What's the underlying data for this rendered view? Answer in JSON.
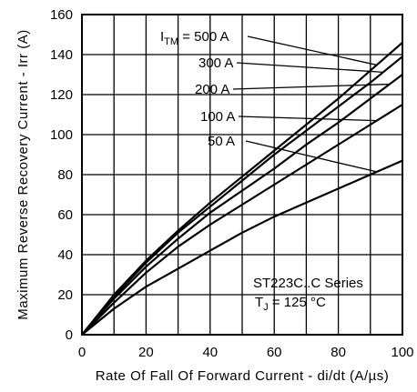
{
  "chart_data": {
    "type": "line",
    "xlabel": "Rate Of Fall Of Forward Current - di/dt (A/µs)",
    "ylabel": "Maximum Reverse Recovery Current - Irr (A)",
    "xlim": [
      0,
      100
    ],
    "ylim": [
      0,
      160
    ],
    "x_ticks": [
      "0",
      "20",
      "40",
      "60",
      "80",
      "100"
    ],
    "y_ticks": [
      "0",
      "20",
      "40",
      "60",
      "80",
      "100",
      "120",
      "140",
      "160"
    ],
    "grid": true,
    "annotation": {
      "series_name": "ST223C..C Series",
      "tj_symbol": "T",
      "tj_sub": "J",
      "tj_value": " = 125 °C",
      "itm_symbol": "I",
      "itm_sub": "TM",
      "itm_value": " = 500 A"
    },
    "series": [
      {
        "name": "500 A",
        "label": "= 500 A",
        "x": [
          0,
          10,
          20,
          30,
          40,
          50,
          60,
          70,
          80,
          90,
          100
        ],
        "y": [
          0,
          20,
          37,
          52,
          66,
          79,
          92,
          105,
          118,
          132,
          146
        ]
      },
      {
        "name": "300 A",
        "label": "300 A",
        "x": [
          0,
          10,
          20,
          30,
          40,
          50,
          60,
          70,
          80,
          90,
          100
        ],
        "y": [
          0,
          19,
          36,
          51,
          64,
          77,
          90,
          102,
          114,
          126,
          139
        ]
      },
      {
        "name": "200 A",
        "label": "200 A",
        "x": [
          0,
          10,
          20,
          30,
          40,
          50,
          60,
          70,
          80,
          90,
          100
        ],
        "y": [
          0,
          18,
          34,
          48,
          61,
          72,
          83,
          95,
          106,
          118,
          130
        ]
      },
      {
        "name": "100 A",
        "label": "100 A",
        "x": [
          0,
          10,
          20,
          30,
          40,
          50,
          60,
          70,
          80,
          90,
          100
        ],
        "y": [
          0,
          16,
          31,
          44,
          55,
          65,
          75,
          85,
          95,
          105,
          115
        ]
      },
      {
        "name": "50 A",
        "label": "50 A",
        "x": [
          0,
          10,
          20,
          30,
          40,
          50,
          60,
          70,
          80,
          90,
          100
        ],
        "y": [
          0,
          13,
          24,
          33,
          42,
          51,
          59,
          66,
          73,
          80,
          87
        ]
      }
    ]
  }
}
